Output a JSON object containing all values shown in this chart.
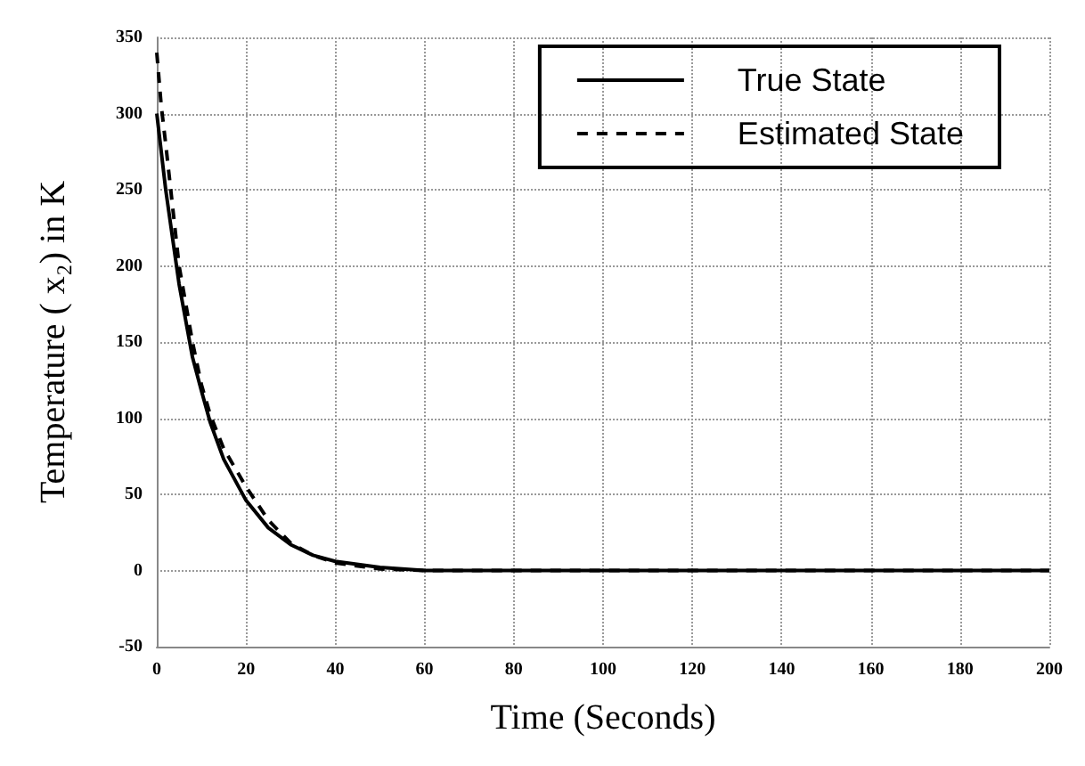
{
  "chart_data": {
    "type": "line",
    "xlabel": "Time (Seconds)",
    "ylabel": "Temperature ( x₂) in K",
    "xlim": [
      0,
      200
    ],
    "ylim": [
      -50,
      350
    ],
    "xticks": [
      0,
      20,
      40,
      60,
      80,
      100,
      120,
      140,
      160,
      180,
      200
    ],
    "yticks": [
      -50,
      0,
      50,
      100,
      150,
      200,
      250,
      300,
      350
    ],
    "grid": true,
    "legend": "top right",
    "marker": "none",
    "series": [
      {
        "name": "True State",
        "color": "#000000",
        "line_style": "solid",
        "x": [
          0,
          2,
          5,
          8,
          10,
          12,
          15,
          20,
          25,
          30,
          35,
          40,
          50,
          60,
          80,
          100,
          150,
          200
        ],
        "values": [
          300,
          250,
          188,
          140,
          118,
          97,
          73,
          46,
          28,
          17,
          10,
          6,
          2,
          0,
          0,
          0,
          0,
          0
        ]
      },
      {
        "name": "Estimated State",
        "color": "#000000",
        "line_style": "dashed",
        "x": [
          0,
          1,
          2,
          5,
          8,
          10,
          12,
          15,
          20,
          25,
          30,
          35,
          40,
          50,
          60,
          80,
          100,
          150,
          200
        ],
        "values": [
          340,
          305,
          280,
          200,
          150,
          122,
          102,
          80,
          55,
          33,
          18,
          10,
          5,
          1,
          0,
          0,
          0,
          0,
          0
        ]
      }
    ]
  }
}
